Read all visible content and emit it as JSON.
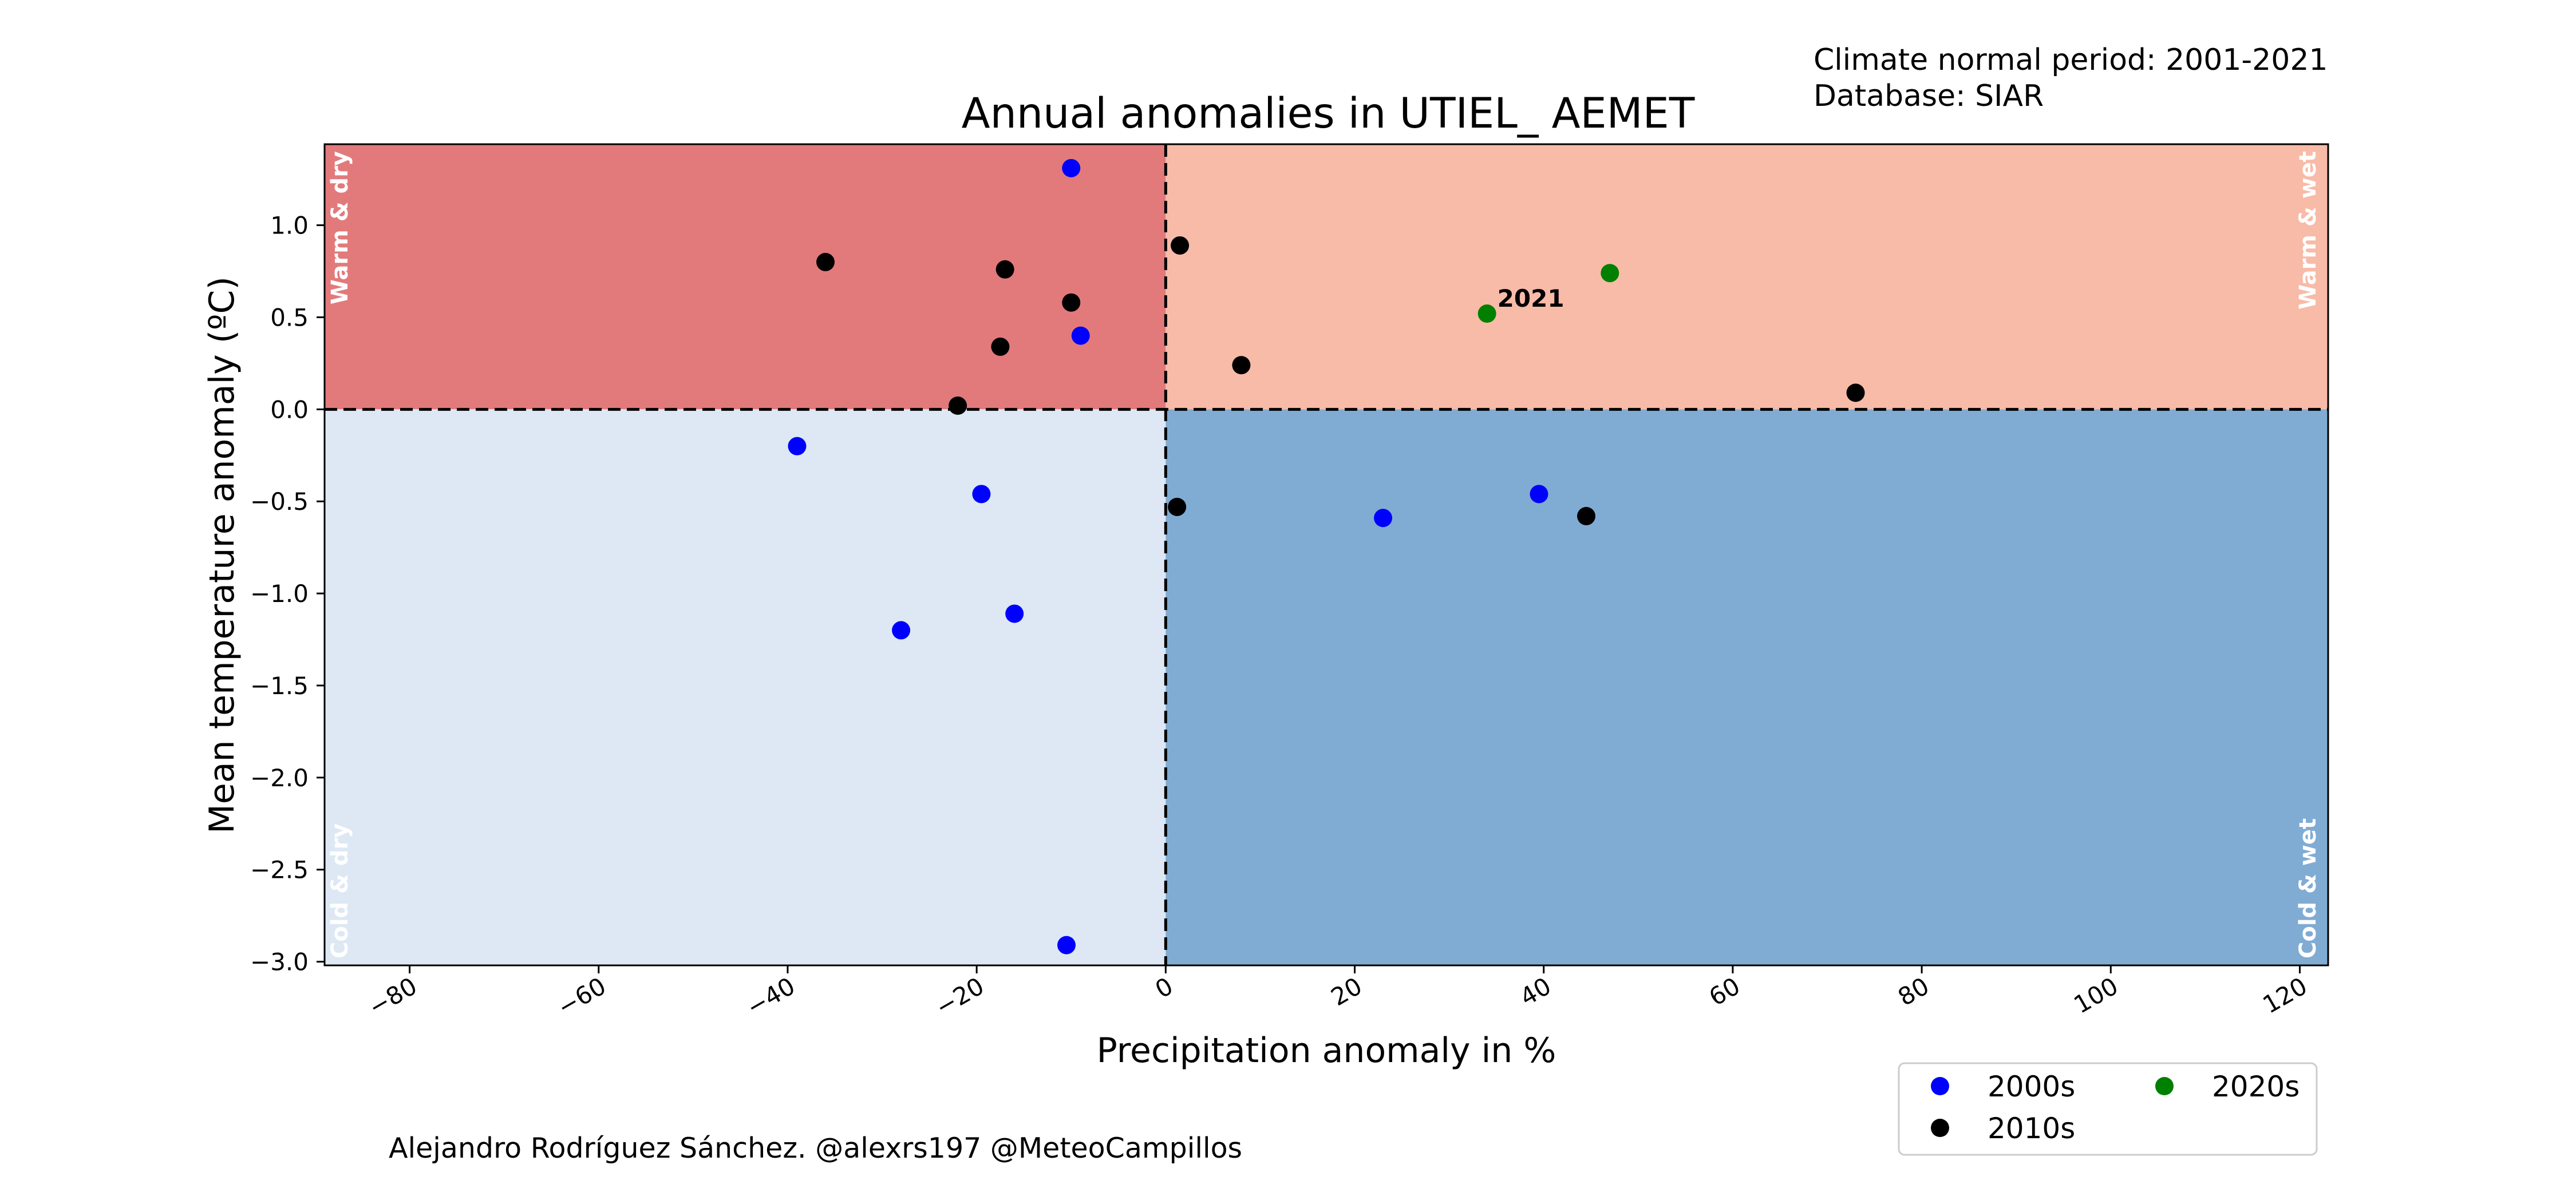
{
  "chart_data": {
    "type": "scatter",
    "title": "Annual anomalies in UTIEL_ AEMET",
    "xlabel": "Precipitation anomaly in %",
    "ylabel": "Mean temperature anomaly (ºC)",
    "xlim": [
      -89,
      123
    ],
    "ylim": [
      -3.02,
      1.44
    ],
    "xticks": [
      -80,
      -60,
      -40,
      -20,
      0,
      20,
      40,
      60,
      80,
      100,
      120
    ],
    "xtick_labels": [
      "−80",
      "−60",
      "−40",
      "−20",
      "0",
      "20",
      "40",
      "60",
      "80",
      "100",
      "120"
    ],
    "yticks": [
      1.0,
      0.5,
      0.0,
      -0.5,
      -1.0,
      -1.5,
      -2.0,
      -2.5,
      -3.0
    ],
    "ytick_labels": [
      "1.0",
      "0.5",
      "0.0",
      "−0.5",
      "−1.0",
      "−1.5",
      "−2.0",
      "−2.5",
      "−3.0"
    ],
    "grid": false,
    "info_lines": [
      "Climate normal period: 2001-2021",
      "Database: SIAR"
    ],
    "credit": "Alejandro Rodríguez Sánchez. @alexrs197 @MeteoCampillos",
    "quadrants": [
      {
        "label": "Warm & dry",
        "color": "#e27a7c",
        "x_side": "negative",
        "y_side": "positive",
        "label_position": "top-left"
      },
      {
        "label": "Warm & wet",
        "color": "#f7bba8",
        "x_side": "positive",
        "y_side": "positive",
        "label_position": "top-right"
      },
      {
        "label": "Cold & dry",
        "color": "#dde8f4",
        "x_side": "negative",
        "y_side": "negative",
        "label_position": "bottom-left"
      },
      {
        "label": "Cold & wet",
        "color": "#80acd4",
        "x_side": "positive",
        "y_side": "negative",
        "label_position": "bottom-right"
      }
    ],
    "legend_position": "lower-right",
    "legend_columns": 2,
    "series": [
      {
        "name": "2000s",
        "color": "#0000ff",
        "points": [
          [
            -10,
            1.31
          ],
          [
            -9,
            0.4
          ],
          [
            -39,
            -0.2
          ],
          [
            -19.5,
            -0.46
          ],
          [
            -28,
            -1.2
          ],
          [
            -16,
            -1.11
          ],
          [
            -10.5,
            -2.91
          ],
          [
            23,
            -0.59
          ],
          [
            39.5,
            -0.46
          ]
        ]
      },
      {
        "name": "2010s",
        "color": "#000000",
        "points": [
          [
            -36,
            0.8
          ],
          [
            -17,
            0.76
          ],
          [
            -10,
            0.58
          ],
          [
            -17.5,
            0.34
          ],
          [
            -22,
            0.02
          ],
          [
            1.5,
            0.89
          ],
          [
            8,
            0.24
          ],
          [
            73,
            0.09
          ],
          [
            1.2,
            -0.53
          ],
          [
            44.5,
            -0.58
          ]
        ]
      },
      {
        "name": "2020s",
        "color": "#008000",
        "points": [
          [
            34,
            0.52
          ],
          [
            47,
            0.74
          ]
        ]
      }
    ],
    "annotations": [
      {
        "text": "2021",
        "x": 34,
        "y": 0.52
      }
    ]
  }
}
